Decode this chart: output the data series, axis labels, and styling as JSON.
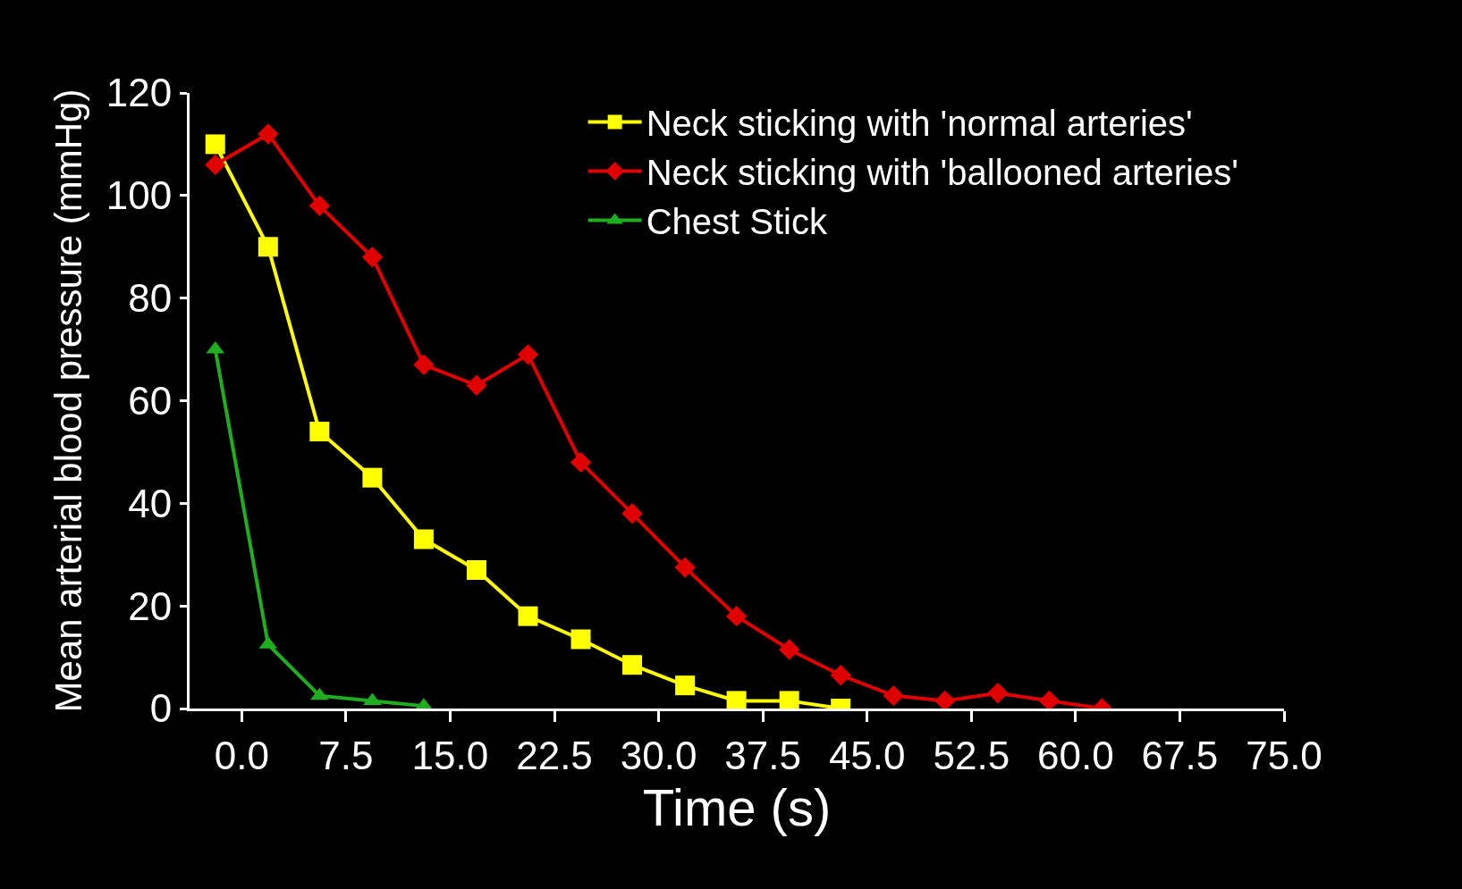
{
  "chart_data": {
    "type": "line",
    "xlabel": "Time (s)",
    "ylabel": "Mean arterial blood pressure (mmHg)",
    "xlim": [
      -3.75,
      75
    ],
    "xticks": [
      {
        "value": 0,
        "label": "0.0"
      },
      {
        "value": 7.5,
        "label": "7.5"
      },
      {
        "value": 15,
        "label": "15.0"
      },
      {
        "value": 22.5,
        "label": "22.5"
      },
      {
        "value": 30,
        "label": "30.0"
      },
      {
        "value": 37.5,
        "label": "37.5"
      },
      {
        "value": 45,
        "label": "45.0"
      },
      {
        "value": 52.5,
        "label": "52.5"
      },
      {
        "value": 60,
        "label": "60.0"
      },
      {
        "value": 67.5,
        "label": "67.5"
      },
      {
        "value": 75,
        "label": "75.0"
      }
    ],
    "ylim": [
      0,
      120
    ],
    "yticks": [
      0,
      20,
      40,
      60,
      80,
      100,
      120
    ],
    "grid": false,
    "legend": "top right",
    "series": [
      {
        "name": "Neck sticking with 'normal arteries'",
        "color": "#ffff00",
        "marker": "square",
        "x": [
          -1.9,
          1.9,
          5.6,
          9.4,
          13.1,
          16.9,
          20.6,
          24.4,
          28.1,
          31.9,
          35.6,
          39.4,
          43.1
        ],
        "values": [
          110,
          90,
          54,
          45,
          33,
          27,
          18,
          13.5,
          8.5,
          4.5,
          1.5,
          1.5,
          0
        ]
      },
      {
        "name": "Neck sticking with 'ballooned arteries'",
        "color": "#e00000",
        "marker": "diamond",
        "x": [
          -1.9,
          1.9,
          5.6,
          9.4,
          13.1,
          16.9,
          20.6,
          24.4,
          28.1,
          31.9,
          35.6,
          39.4,
          43.1,
          46.9,
          50.6,
          54.4,
          58.1,
          61.9
        ],
        "values": [
          106,
          112,
          98,
          88,
          67,
          63,
          69,
          48,
          38,
          27.5,
          18,
          11.5,
          6.5,
          2.5,
          1.5,
          3,
          1.5,
          0
        ]
      },
      {
        "name": "Chest Stick",
        "color": "#1fae1f",
        "marker": "triangle",
        "x": [
          -1.9,
          1.9,
          5.6,
          9.4,
          13.1
        ],
        "values": [
          70,
          12.5,
          2.5,
          1.5,
          0.5
        ]
      }
    ]
  }
}
